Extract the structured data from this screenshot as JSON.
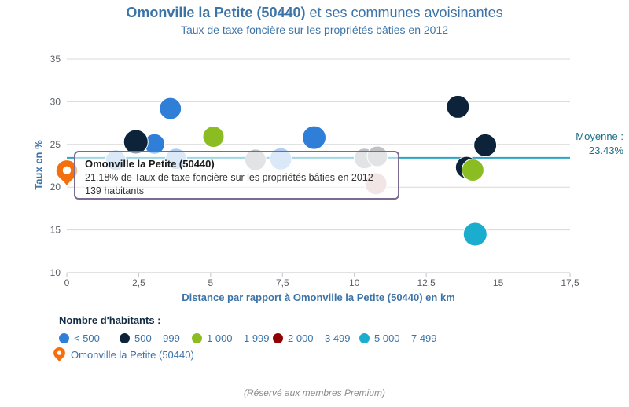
{
  "header": {
    "title_bold": "Omonville la Petite (50440)",
    "title_rest": " et ses communes avoisinantes",
    "subtitle": "Taux de taxe foncière sur les propriétés bâties en 2012"
  },
  "chart_data": {
    "type": "scatter",
    "title": "Omonville la Petite (50440) et ses communes avoisinantes",
    "subtitle": "Taux de taxe foncière sur les propriétés bâties en 2012",
    "xlabel": "Distance par rapport à Omonville la Petite (50440) en km",
    "ylabel": "Taux en %",
    "xlim": [
      0,
      17.5
    ],
    "ylim": [
      10,
      35
    ],
    "xticks": [
      "0",
      "2,5",
      "5",
      "7,5",
      "10",
      "12,5",
      "15",
      "17,5"
    ],
    "yticks": [
      35,
      30,
      25,
      20,
      15,
      10
    ],
    "grid": "horizontal-only",
    "legend_position": "bottom-left",
    "average": {
      "value": 23.43,
      "label_line1": "Moyenne :",
      "label_line2": "23.43%",
      "line_color": "#2aa6c4",
      "text_color": "#1a6c84"
    },
    "palette": {
      "lt_500": "#2f7ed8",
      "pop_500_999": "#0d233a",
      "pop_1000_1999": "#8bbc21",
      "pop_2000_3499": "#910000",
      "pop_5000_7499": "#1aadce",
      "faded_blue": "#aecdf0",
      "faded_gray": "#bfc1c5",
      "faded_red": "#e3c6c8"
    },
    "points": [
      {
        "x": 1.7,
        "y": 23.15,
        "r": 13,
        "color": "faded_blue"
      },
      {
        "x": 3.8,
        "y": 23.3,
        "r": 13.5,
        "color": "faded_blue"
      },
      {
        "x": 6.56,
        "y": 23.2,
        "r": 13.5,
        "color": "faded_gray"
      },
      {
        "x": 7.44,
        "y": 23.3,
        "r": 14,
        "color": "faded_blue"
      },
      {
        "x": 10.35,
        "y": 23.35,
        "r": 13,
        "color": "faded_gray"
      },
      {
        "x": 10.8,
        "y": 23.6,
        "r": 13,
        "color": "faded_gray"
      },
      {
        "x": 10.75,
        "y": 20.4,
        "r": 14,
        "color": "faded_red"
      },
      {
        "x": 3.05,
        "y": 25.05,
        "r": 13,
        "color": "lt_500"
      },
      {
        "x": 2.4,
        "y": 25.3,
        "r": 15.5,
        "color": "pop_500_999"
      },
      {
        "x": 3.6,
        "y": 29.2,
        "r": 14,
        "color": "lt_500"
      },
      {
        "x": 5.1,
        "y": 25.9,
        "r": 13.5,
        "color": "pop_1000_1999"
      },
      {
        "x": 8.6,
        "y": 25.8,
        "r": 15,
        "color": "lt_500"
      },
      {
        "x": 13.6,
        "y": 29.4,
        "r": 14.5,
        "color": "pop_500_999"
      },
      {
        "x": 14.55,
        "y": 24.9,
        "r": 14.5,
        "color": "pop_500_999"
      },
      {
        "x": 13.9,
        "y": 22.3,
        "r": 14,
        "color": "pop_500_999"
      },
      {
        "x": 14.12,
        "y": 22.0,
        "r": 14,
        "color": "pop_1000_1999"
      },
      {
        "x": 14.2,
        "y": 14.5,
        "r": 15,
        "color": "pop_5000_7499"
      }
    ],
    "marker_point": {
      "x": 0,
      "y": 21.18,
      "label": "Omonville la Petite (50440)",
      "color": "#f5700c"
    }
  },
  "tooltip": {
    "title": "Omonville la Petite (50440)",
    "line1": "21.18% de Taux de taxe foncière sur les propriétés bâties en 2012",
    "line2": "139 habitants"
  },
  "legend": {
    "title": "Nombre d'habitants :",
    "items": [
      {
        "label": "< 500",
        "color": "#2f7ed8"
      },
      {
        "label": "500 – 999",
        "color": "#0d233a"
      },
      {
        "label": "1 000 – 1 999",
        "color": "#8bbc21"
      },
      {
        "label": "2 000 – 3 499",
        "color": "#910000"
      },
      {
        "label": "5 000 – 7 499",
        "color": "#1aadce"
      }
    ],
    "marker_item": {
      "label": "Omonville la Petite (50440)",
      "color": "#f5700c"
    }
  },
  "footer": {
    "note": "(Réservé aux membres Premium)"
  }
}
